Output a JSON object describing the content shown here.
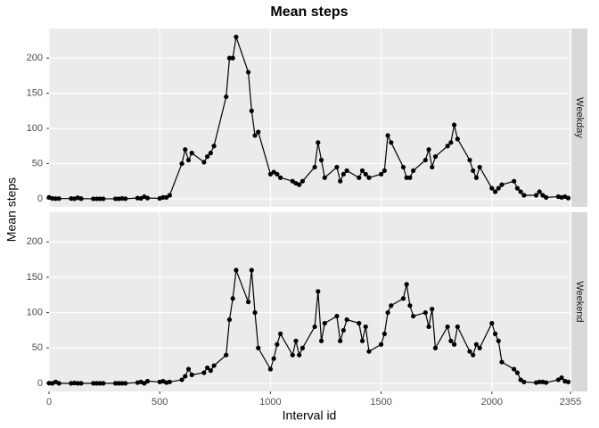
{
  "chart_data": {
    "type": "line",
    "title": "Mean steps",
    "xlabel": "Interval id",
    "ylabel": "Mean steps",
    "x": [
      0,
      15,
      30,
      45,
      100,
      115,
      130,
      145,
      200,
      215,
      230,
      245,
      300,
      315,
      330,
      345,
      400,
      415,
      430,
      445,
      500,
      515,
      530,
      545,
      600,
      615,
      630,
      645,
      700,
      715,
      730,
      745,
      800,
      815,
      830,
      845,
      900,
      915,
      930,
      945,
      1000,
      1015,
      1030,
      1045,
      1100,
      1115,
      1130,
      1145,
      1200,
      1215,
      1230,
      1245,
      1300,
      1315,
      1330,
      1345,
      1400,
      1415,
      1430,
      1445,
      1500,
      1515,
      1530,
      1545,
      1600,
      1615,
      1630,
      1645,
      1700,
      1715,
      1730,
      1745,
      1800,
      1815,
      1830,
      1845,
      1900,
      1915,
      1930,
      1945,
      2000,
      2015,
      2030,
      2045,
      2100,
      2115,
      2130,
      2145,
      2200,
      2215,
      2230,
      2245,
      2300,
      2315,
      2330,
      2345
    ],
    "xlim": [
      0,
      2355
    ],
    "xticks": [
      0,
      500,
      1000,
      1500,
      2000,
      2355
    ],
    "ylim": [
      -11.5,
      242
    ],
    "yticks": [
      0,
      50,
      100,
      150,
      200
    ],
    "grid": true,
    "color": "#000000",
    "series": [
      {
        "name": "Weekday",
        "color": "#000000",
        "values": [
          2,
          0.5,
          0.2,
          0.3,
          0.4,
          0.1,
          1.5,
          0.2,
          0,
          0,
          0,
          0,
          0,
          0,
          0.5,
          0.1,
          1,
          0.5,
          3,
          1,
          0.5,
          2,
          2,
          5,
          50,
          70,
          55,
          65,
          52,
          60,
          65,
          75,
          145,
          200,
          200,
          230,
          180,
          125,
          90,
          95,
          35,
          38,
          35,
          30,
          25,
          22,
          20,
          25,
          45,
          80,
          55,
          30,
          45,
          25,
          35,
          40,
          30,
          40,
          35,
          30,
          35,
          40,
          90,
          80,
          45,
          30,
          30,
          40,
          55,
          70,
          45,
          60,
          75,
          80,
          105,
          85,
          55,
          40,
          30,
          45,
          15,
          10,
          15,
          20,
          25,
          15,
          10,
          5,
          5,
          10,
          5,
          2,
          3,
          2,
          3,
          1
        ]
      },
      {
        "name": "Weekend",
        "color": "#000000",
        "values": [
          0.2,
          0,
          2,
          0,
          0,
          0.5,
          0,
          0,
          0,
          0,
          0,
          0,
          0,
          0,
          0,
          0,
          1,
          2,
          0,
          3,
          2,
          3,
          1,
          2,
          5,
          10,
          20,
          12,
          15,
          22,
          18,
          25,
          40,
          90,
          120,
          160,
          115,
          160,
          100,
          50,
          20,
          35,
          55,
          70,
          40,
          60,
          40,
          50,
          80,
          130,
          60,
          85,
          95,
          60,
          75,
          90,
          85,
          60,
          80,
          45,
          55,
          70,
          100,
          110,
          120,
          140,
          110,
          95,
          100,
          80,
          105,
          50,
          80,
          60,
          55,
          80,
          45,
          40,
          55,
          50,
          85,
          70,
          60,
          30,
          20,
          15,
          5,
          2,
          1,
          2,
          2,
          1,
          5,
          8,
          3,
          2
        ]
      }
    ]
  }
}
